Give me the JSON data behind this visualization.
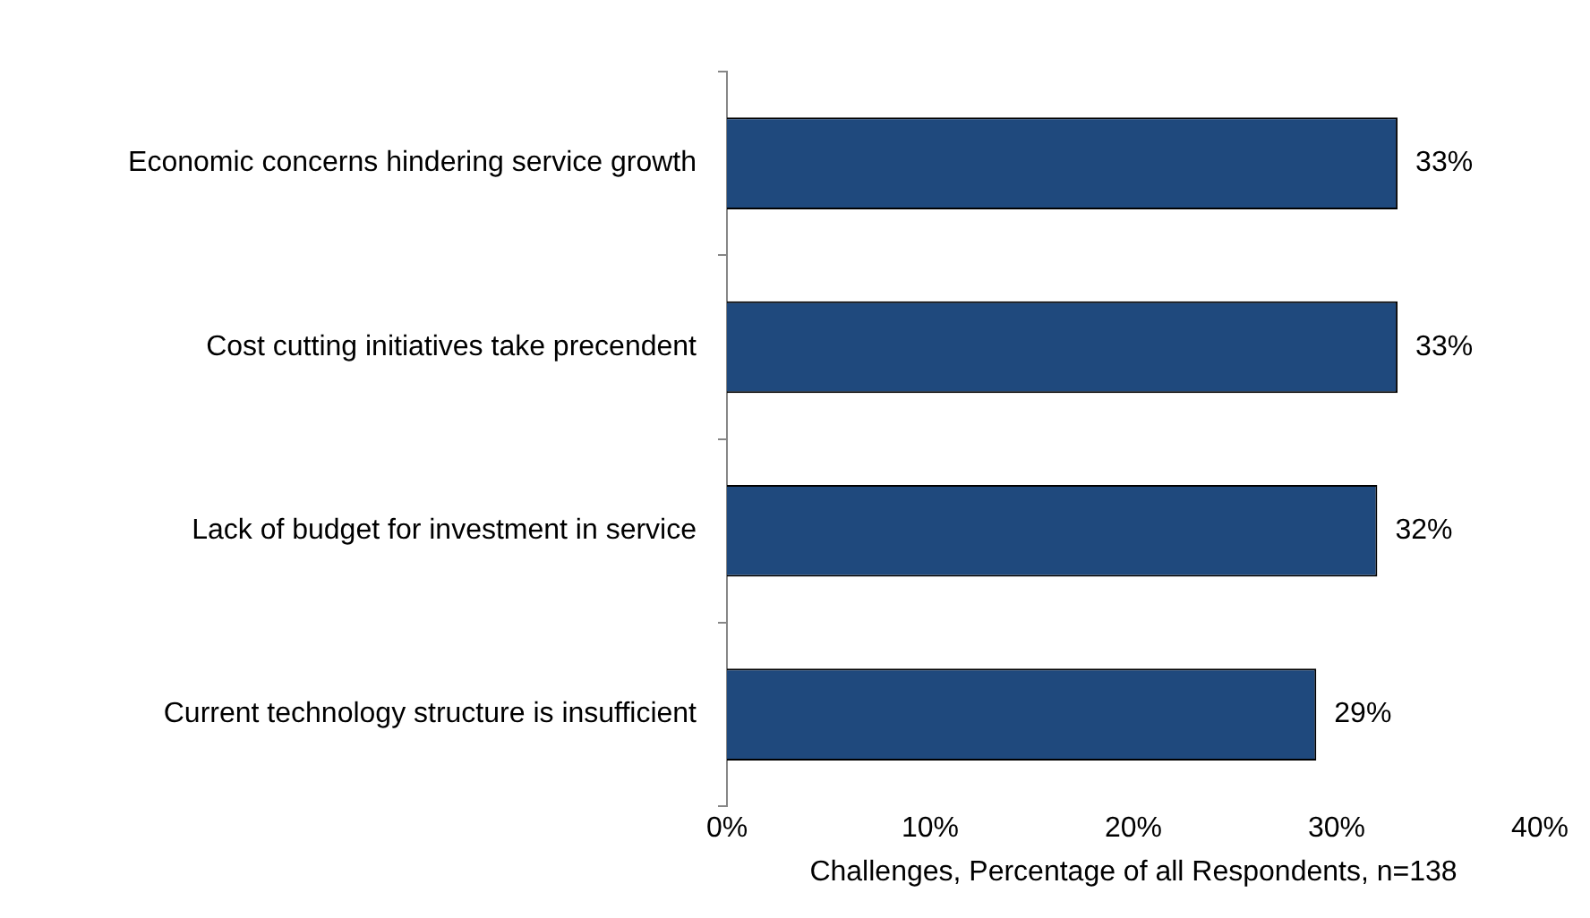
{
  "chart_data": {
    "type": "bar",
    "orientation": "horizontal",
    "xlabel": "Challenges, Percentage of all Respondents, n=138",
    "categories": [
      "Economic concerns hindering service growth",
      "Cost cutting initiatives take precendent",
      "Lack of budget for investment in service",
      "Current technology structure is insufficient"
    ],
    "values": [
      33,
      33,
      32,
      29
    ],
    "value_labels": [
      "33%",
      "33%",
      "32%",
      "29%"
    ],
    "color": "#1f497d",
    "xlim": [
      0,
      40
    ],
    "xticks": [
      {
        "value": 0,
        "label": "0%"
      },
      {
        "value": 10,
        "label": "10%"
      },
      {
        "value": 20,
        "label": "20%"
      },
      {
        "value": 30,
        "label": "30%"
      },
      {
        "value": 40,
        "label": "40%"
      }
    ],
    "grid": false,
    "legend": false
  }
}
